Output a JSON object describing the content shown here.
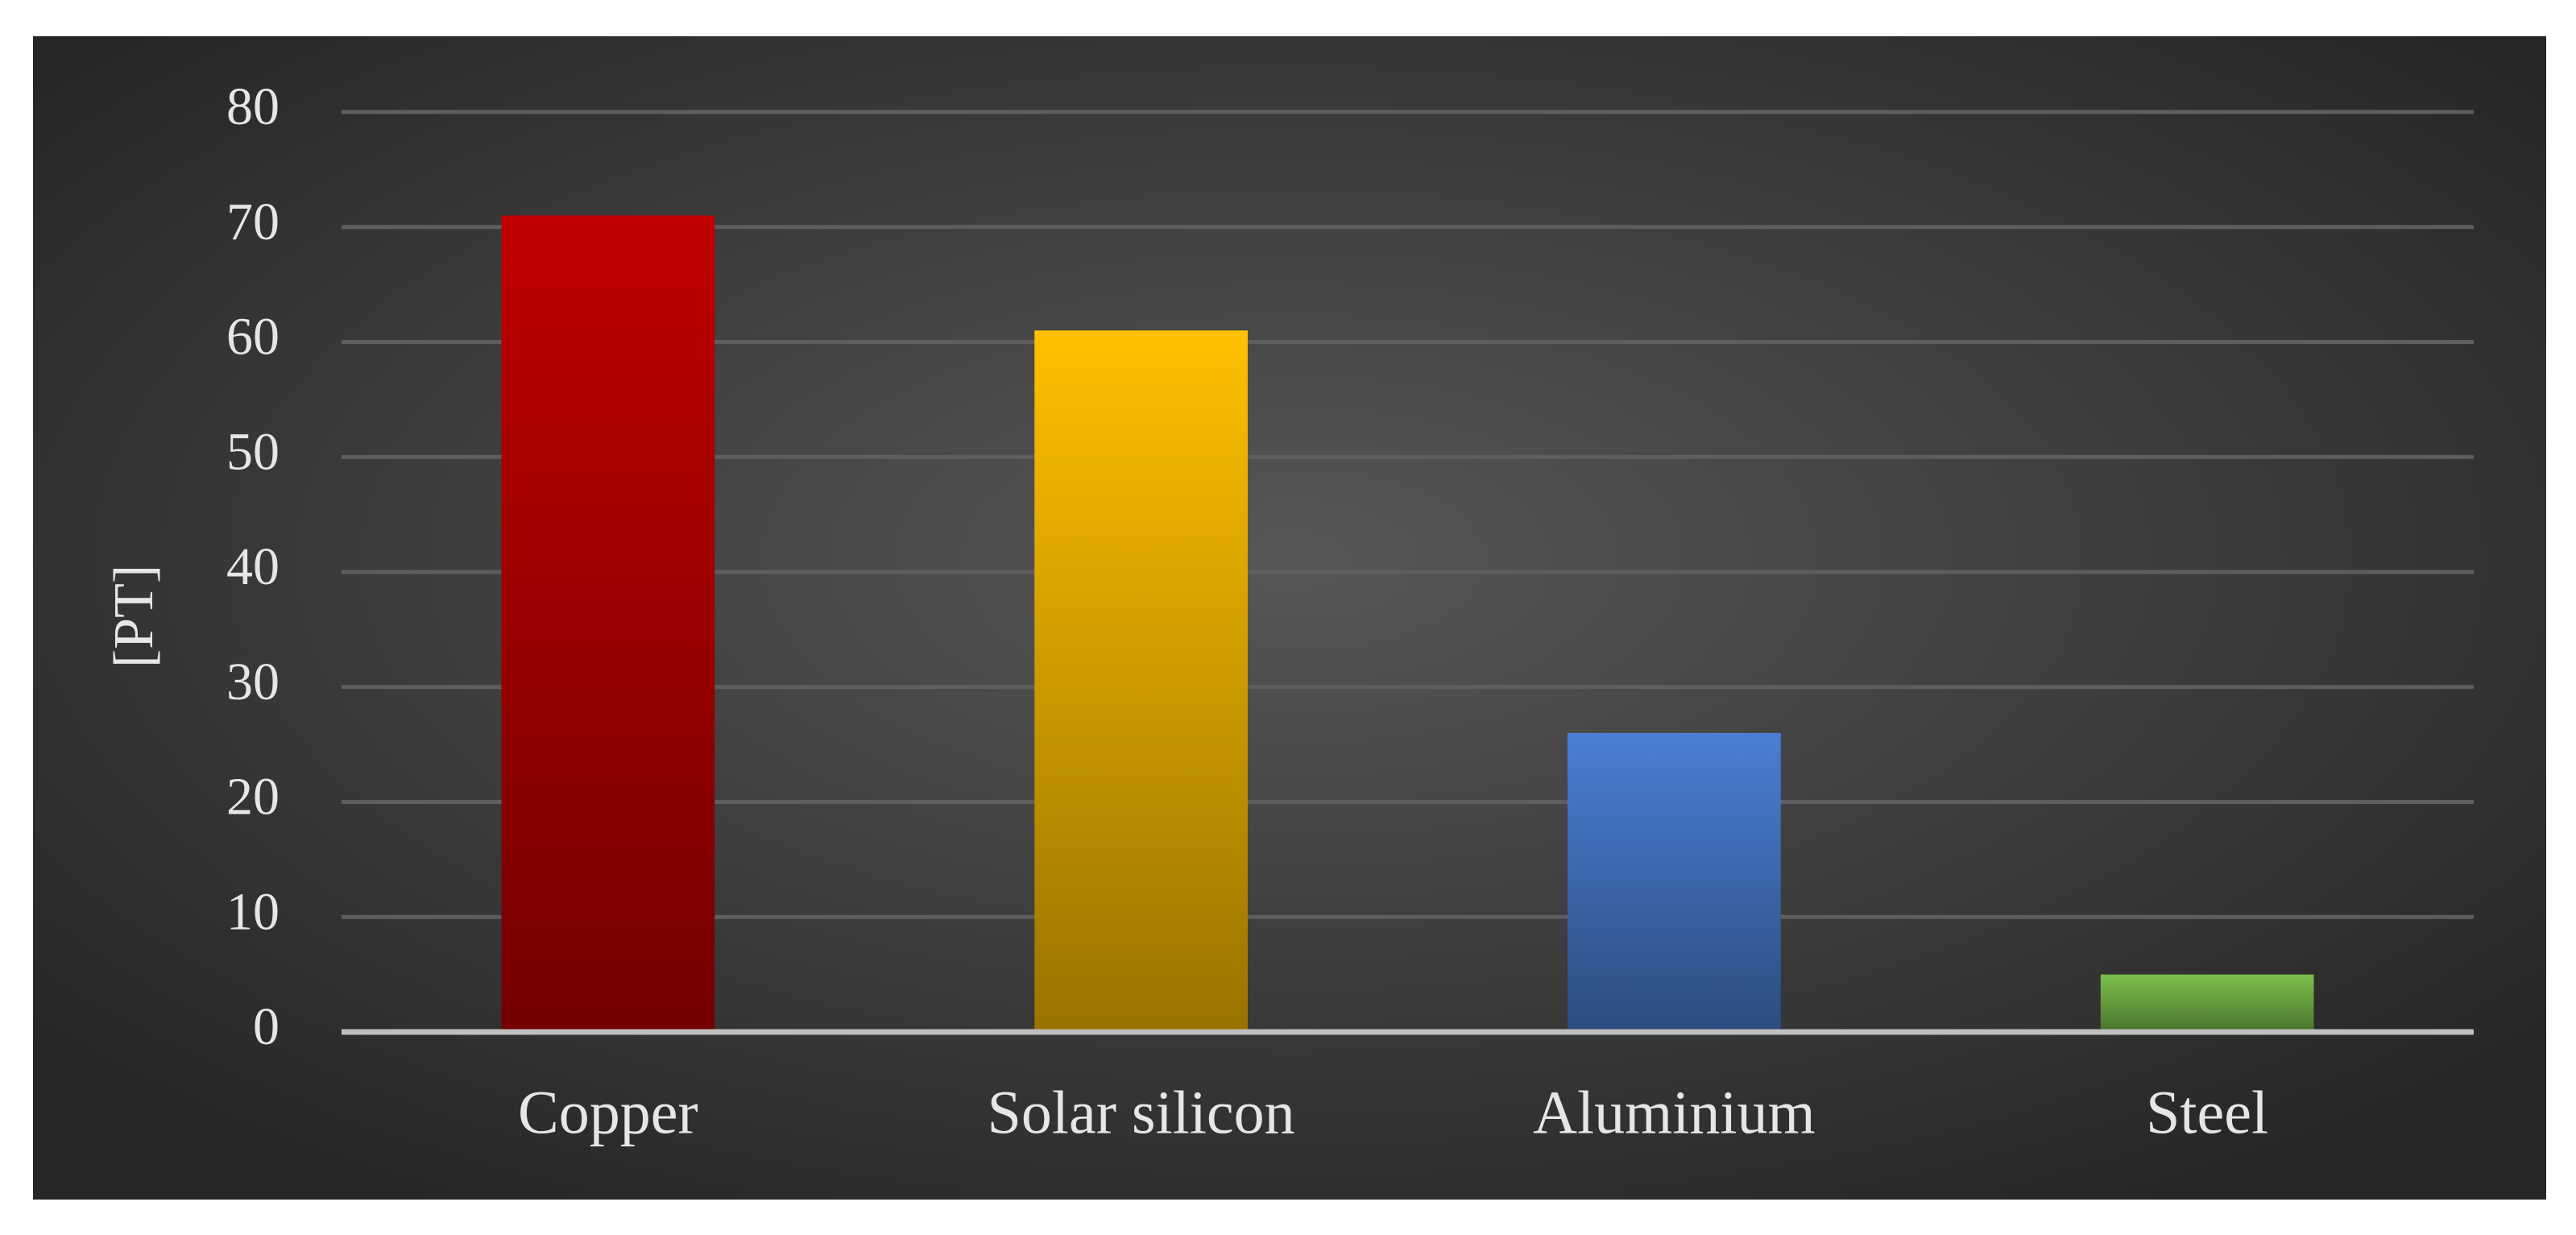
{
  "chart_data": {
    "type": "bar",
    "y_label": "[PT]",
    "categories": [
      "Copper",
      "Solar silicon",
      "Aluminium",
      "Steel"
    ],
    "values": [
      71,
      61,
      26,
      5
    ],
    "colors": [
      "#c00000",
      "#ffc000",
      "#4a7fd4",
      "#7cbf4a"
    ],
    "ylim": [
      0,
      80
    ],
    "yticks": [
      0,
      10,
      20,
      30,
      40,
      50,
      60,
      70,
      80
    ],
    "grid": true
  }
}
